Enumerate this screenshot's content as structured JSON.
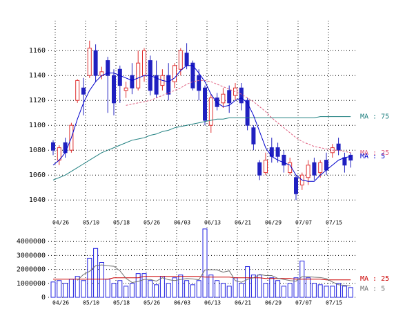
{
  "chart_data": [
    {
      "type": "candlestick",
      "categories": [
        "04/26",
        null,
        null,
        null,
        null,
        "05/10",
        null,
        null,
        null,
        null,
        "05/18",
        null,
        null,
        null,
        null,
        "05/26",
        null,
        null,
        null,
        null,
        "06/03",
        null,
        null,
        null,
        null,
        "06/13",
        null,
        null,
        null,
        null,
        "06/21",
        null,
        null,
        null,
        null,
        "06/29",
        null,
        null,
        null,
        null,
        "07/07",
        null,
        null,
        null,
        null,
        "07/15",
        null,
        null,
        null,
        null
      ],
      "open": [
        1086,
        1072,
        1086,
        1080,
        1120,
        1130,
        1140,
        1160,
        1140,
        1152,
        1140,
        1145,
        1128,
        1140,
        1130,
        1140,
        1152,
        1140,
        1132,
        1140,
        1135,
        1145,
        1158,
        1150,
        1140,
        1130,
        1100,
        1122,
        1118,
        1128,
        1124,
        1130,
        1120,
        1098,
        1070,
        1062,
        1082,
        1082,
        1076,
        1062,
        1058,
        1052,
        1058,
        1070,
        1062,
        1072,
        1078,
        1085,
        1074,
        1076
      ],
      "high": [
        1088,
        1084,
        1090,
        1102,
        1137,
        1138,
        1168,
        1165,
        1147,
        1155,
        1145,
        1148,
        1135,
        1150,
        1160,
        1162,
        1156,
        1152,
        1145,
        1150,
        1150,
        1162,
        1166,
        1152,
        1145,
        1132,
        1125,
        1126,
        1130,
        1132,
        1134,
        1134,
        1122,
        1100,
        1072,
        1078,
        1090,
        1086,
        1080,
        1074,
        1060,
        1062,
        1072,
        1074,
        1072,
        1078,
        1085,
        1090,
        1078,
        1078
      ],
      "low": [
        1076,
        1068,
        1074,
        1078,
        1118,
        1108,
        1138,
        1135,
        1137,
        1110,
        1108,
        1118,
        1122,
        1125,
        1128,
        1135,
        1124,
        1122,
        1128,
        1120,
        1130,
        1140,
        1145,
        1128,
        1120,
        1100,
        1094,
        1112,
        1114,
        1110,
        1120,
        1112,
        1096,
        1080,
        1056,
        1060,
        1070,
        1070,
        1062,
        1060,
        1040,
        1048,
        1052,
        1056,
        1058,
        1060,
        1074,
        1076,
        1062,
        1066
      ],
      "close": [
        1080,
        1082,
        1078,
        1100,
        1136,
        1125,
        1162,
        1140,
        1143,
        1140,
        1118,
        1132,
        1130,
        1130,
        1150,
        1160,
        1128,
        1125,
        1140,
        1125,
        1148,
        1160,
        1148,
        1130,
        1128,
        1104,
        1122,
        1115,
        1125,
        1118,
        1130,
        1118,
        1100,
        1085,
        1060,
        1072,
        1075,
        1075,
        1068,
        1070,
        1045,
        1060,
        1068,
        1060,
        1070,
        1064,
        1082,
        1080,
        1068,
        1072
      ],
      "up_color": "#e03030",
      "down_color": "#2020c0",
      "lines": [
        {
          "name": "MA : 75",
          "color": "#208080",
          "style": "solid",
          "values": [
            1056,
            1058,
            1060,
            1063,
            1066,
            1069,
            1072,
            1075,
            1078,
            1080,
            1082,
            1084,
            1086,
            1088,
            1089,
            1090,
            1092,
            1093,
            1095,
            1096,
            1098,
            1099,
            1100,
            1101,
            1102,
            1103,
            1104,
            1105,
            1105,
            1106,
            1106,
            1106,
            1106,
            1106,
            1106,
            1106,
            1106,
            1106,
            1106,
            1106,
            1106,
            1106,
            1106,
            1106,
            1107,
            1107,
            1107,
            1107,
            1107,
            1107
          ]
        },
        {
          "name": "MA : 25",
          "color": "#e06080",
          "style": "dashed",
          "values": [
            null,
            null,
            null,
            null,
            null,
            null,
            null,
            null,
            null,
            null,
            null,
            null,
            1116,
            1117,
            1118,
            1119,
            1120,
            1122,
            1124,
            1126,
            1128,
            1130,
            1133,
            1135,
            1136,
            1136,
            1135,
            1133,
            1131,
            1129,
            1127,
            1125,
            1122,
            1119,
            1115,
            1111,
            1106,
            1102,
            1098,
            1094,
            1090,
            1087,
            1085,
            1083,
            1082,
            1081,
            1080,
            1080,
            1079,
            1078
          ]
        },
        {
          "name": "MA : 5",
          "color": "#0000cc",
          "style": "solid",
          "values": [
            1068,
            1072,
            1078,
            1090,
            1105,
            1118,
            1128,
            1135,
            1140,
            1142,
            1142,
            1140,
            1138,
            1136,
            1138,
            1140,
            1140,
            1138,
            1136,
            1135,
            1138,
            1144,
            1148,
            1148,
            1142,
            1135,
            1125,
            1118,
            1115,
            1116,
            1120,
            1122,
            1118,
            1108,
            1095,
            1082,
            1075,
            1072,
            1070,
            1068,
            1060,
            1056,
            1055,
            1055,
            1060,
            1064,
            1068,
            1072,
            1074,
            1075
          ]
        }
      ],
      "ylim": [
        1024,
        1184
      ],
      "yticks": [
        1040,
        1060,
        1080,
        1100,
        1120,
        1140,
        1160
      ],
      "grid": true
    },
    {
      "type": "bar",
      "categories": [
        "04/26",
        null,
        null,
        null,
        null,
        "05/10",
        null,
        null,
        null,
        null,
        "05/18",
        null,
        null,
        null,
        null,
        "05/26",
        null,
        null,
        null,
        null,
        "06/03",
        null,
        null,
        null,
        null,
        "06/13",
        null,
        null,
        null,
        null,
        "06/21",
        null,
        null,
        null,
        null,
        "06/29",
        null,
        null,
        null,
        null,
        "07/07",
        null,
        null,
        null,
        null,
        "07/15",
        null,
        null,
        null,
        null
      ],
      "values": [
        1100000,
        1200000,
        1000000,
        1300000,
        1500000,
        1200000,
        2800000,
        3500000,
        2500000,
        1300000,
        1000000,
        1200000,
        800000,
        1000000,
        1700000,
        1700000,
        1200000,
        900000,
        1500000,
        1000000,
        1400000,
        1600000,
        1200000,
        900000,
        1200000,
        4900000,
        1600000,
        1200000,
        1000000,
        800000,
        1400000,
        1000000,
        2200000,
        1600000,
        1600000,
        1000000,
        1400000,
        1200000,
        800000,
        1000000,
        1400000,
        2600000,
        1400000,
        1000000,
        900000,
        800000,
        800000,
        1000000,
        800000,
        700000
      ],
      "color": "#2020e0",
      "lines": [
        {
          "name": "MA : 25",
          "color": "#cc0000",
          "style": "solid",
          "values": [
            1300000,
            1300000,
            1300000,
            1300000,
            1300000,
            1300000,
            1300000,
            1300000,
            1300000,
            1300000,
            1400000,
            1400000,
            1400000,
            1400000,
            1400000,
            1500000,
            1500000,
            1500000,
            1500000,
            1500000,
            1500000,
            1500000,
            1500000,
            1500000,
            1500000,
            1450000,
            1450000,
            1450000,
            1450000,
            1450000,
            1400000,
            1400000,
            1400000,
            1400000,
            1400000,
            1350000,
            1350000,
            1350000,
            1350000,
            1350000,
            1300000,
            1300000,
            1300000,
            1300000,
            1300000,
            1250000,
            1250000,
            1250000,
            1250000,
            1250000
          ]
        },
        {
          "name": "MA : 5",
          "color": "#707070",
          "style": "solid",
          "values": [
            null,
            null,
            null,
            null,
            1220000,
            1640000,
            1860000,
            2260000,
            2320000,
            2260000,
            2220000,
            1900000,
            1360000,
            1060000,
            1140000,
            1280000,
            1280000,
            1160000,
            1400000,
            1260000,
            1200000,
            1280000,
            1340000,
            1320000,
            1260000,
            1960000,
            1980000,
            1960000,
            1800000,
            1900000,
            1200000,
            1080000,
            1280000,
            1400000,
            1640000,
            1560000,
            1560000,
            1360000,
            1280000,
            1200000,
            1160000,
            1480000,
            1480000,
            1440000,
            1420000,
            1340000,
            1100000,
            900000,
            860000,
            820000
          ]
        }
      ],
      "ylim": [
        0,
        5000000
      ],
      "yticks": [
        0,
        1000000,
        2000000,
        3000000,
        4000000
      ],
      "grid": true
    }
  ]
}
